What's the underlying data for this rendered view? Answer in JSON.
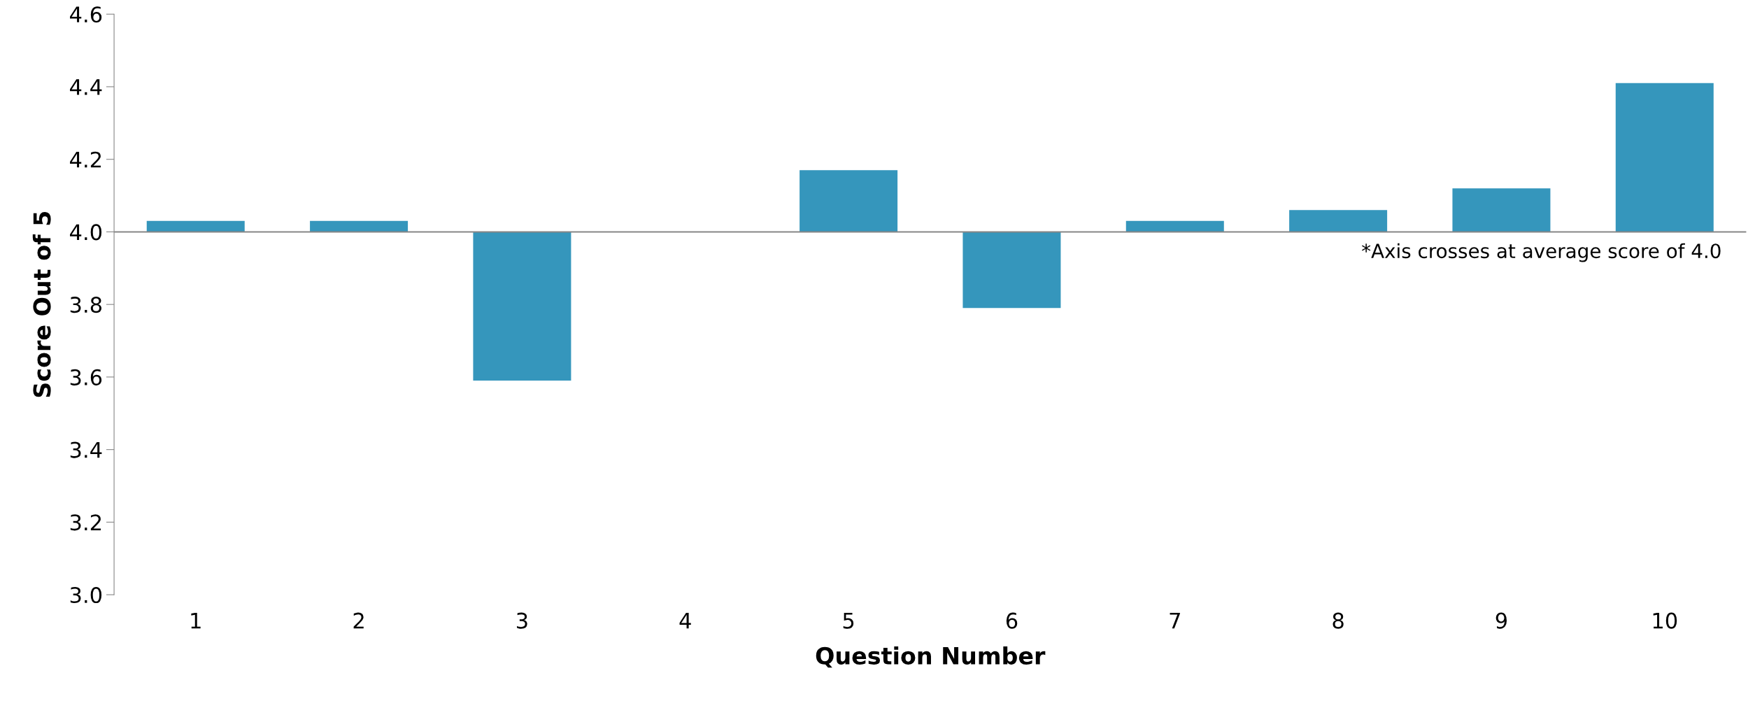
{
  "chart_data": {
    "type": "bar",
    "xlabel": "Question Number",
    "ylabel": "Score Out of 5",
    "categories": [
      "1",
      "2",
      "3",
      "4",
      "5",
      "6",
      "7",
      "8",
      "9",
      "10"
    ],
    "base": [
      4.0,
      4.0,
      4.0,
      null,
      4.0,
      4.0,
      4.0,
      4.0,
      4.0,
      4.0
    ],
    "values": [
      0.03,
      0.03,
      -0.41,
      null,
      0.17,
      -0.21,
      0.03,
      0.06,
      0.12,
      0.41
    ],
    "color": "#3596bc",
    "ylim": [
      3.0,
      4.6
    ],
    "yticks": [
      {
        "value": 3.0,
        "label": "3.0"
      },
      {
        "value": 3.2,
        "label": "3.2"
      },
      {
        "value": 3.4,
        "label": "3.4"
      },
      {
        "value": 3.6,
        "label": "3.6"
      },
      {
        "value": 3.8,
        "label": "3.8"
      },
      {
        "value": 4.0,
        "label": "4.0"
      },
      {
        "value": 4.2,
        "label": "4.2"
      },
      {
        "value": 4.4,
        "label": "4.4"
      },
      {
        "value": 4.6,
        "label": "4.6"
      }
    ],
    "ref_lines": [
      {
        "axis": "y",
        "value": 4.0,
        "color": "#868686"
      }
    ],
    "annotations": [
      "*Axis crosses at average score of 4.0"
    ],
    "grid": false,
    "legend": false
  }
}
